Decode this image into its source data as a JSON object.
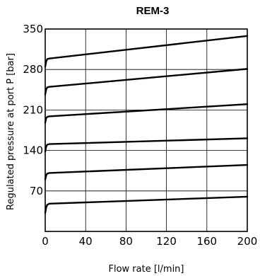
{
  "chart_data": {
    "type": "line",
    "title": "REM-3",
    "xlabel": "Flow rate [l/min]",
    "ylabel": "Regulated pressure at port P [bar]",
    "xlim": [
      0,
      200
    ],
    "ylim": [
      0,
      350
    ],
    "xticks": [
      0,
      40,
      80,
      120,
      160,
      200
    ],
    "yticks": [
      70,
      140,
      210,
      280,
      350
    ],
    "xtick_labels": [
      "0",
      "40",
      "80",
      "120",
      "160",
      "200"
    ],
    "ytick_labels": [
      "70",
      "140",
      "210",
      "280",
      "350"
    ],
    "grid": true,
    "series": [
      {
        "x": [
          0,
          1,
          2,
          4,
          200
        ],
        "y": [
          32,
          42,
          46,
          48,
          60
        ]
      },
      {
        "x": [
          0,
          1,
          2,
          4,
          200
        ],
        "y": [
          90,
          97,
          100,
          101,
          115
        ]
      },
      {
        "x": [
          0,
          1,
          2,
          4,
          200
        ],
        "y": [
          138,
          147,
          150,
          151,
          161
        ]
      },
      {
        "x": [
          0,
          1,
          2,
          4,
          200
        ],
        "y": [
          188,
          196,
          198,
          199,
          220
        ]
      },
      {
        "x": [
          0,
          1,
          2,
          4,
          200
        ],
        "y": [
          237,
          246,
          249,
          250,
          281
        ]
      },
      {
        "x": [
          0,
          1,
          2,
          4,
          200
        ],
        "y": [
          285,
          294,
          298,
          299,
          338
        ]
      }
    ]
  }
}
